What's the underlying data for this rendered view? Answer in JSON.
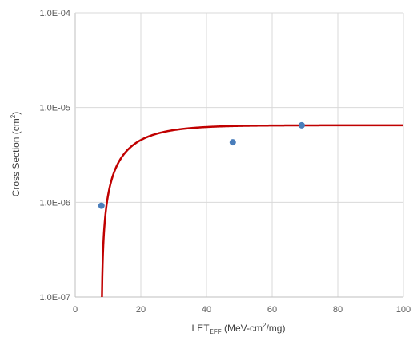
{
  "chart_data": {
    "type": "scatter",
    "title": "",
    "xlabel": {
      "main": "LET",
      "sub": "EFF",
      "units_pre": " (MeV-cm",
      "units_sup": "2",
      "units_post": "/mg)"
    },
    "ylabel": {
      "main": "Cross Section (cm",
      "sup": "2",
      "post": ")"
    },
    "xlim": [
      0,
      100
    ],
    "ylim": [
      1e-07,
      0.0001
    ],
    "yscale": "log",
    "grid": true,
    "x_ticks": [
      0,
      20,
      40,
      60,
      80,
      100
    ],
    "x_tick_labels": [
      "0",
      "20",
      "40",
      "60",
      "80",
      "100"
    ],
    "y_ticks": [
      1e-07,
      1e-06,
      1e-05,
      0.0001
    ],
    "y_tick_labels": [
      "1.0E-07",
      "1.0E-06",
      "1.0E-05",
      "1.0E-04"
    ],
    "series": [
      {
        "kind": "points",
        "color": "#4a7ebb",
        "x": [
          8,
          48,
          69
        ],
        "y": [
          9.2e-07,
          4.3e-06,
          6.5e-06
        ]
      },
      {
        "kind": "fit_curve",
        "model": "weibull",
        "color": "#c00000",
        "saturation": 6.5e-06,
        "threshold": 8.0,
        "width": 10.0,
        "shape": 1.0
      }
    ],
    "colors": {
      "grid": "#d9d9d9",
      "axis": "#bfbfbf"
    }
  }
}
